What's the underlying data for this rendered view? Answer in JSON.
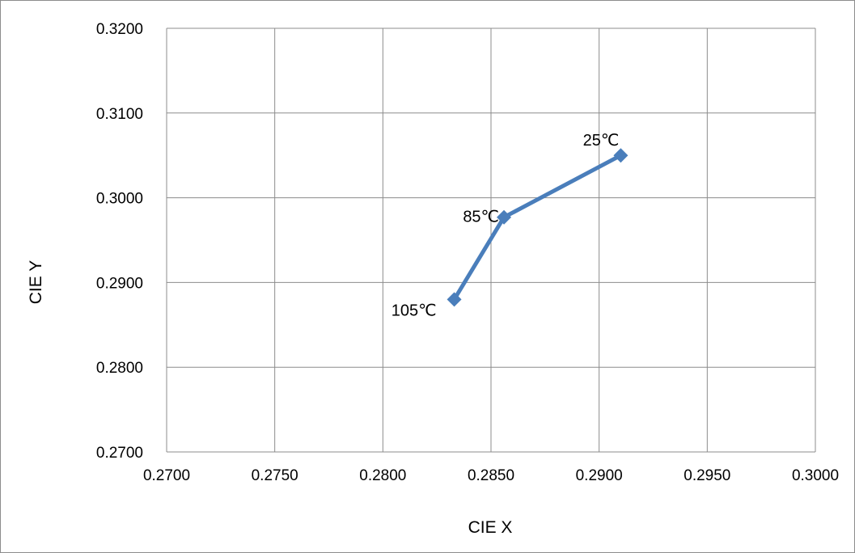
{
  "chart_data": {
    "type": "scatter",
    "title": "",
    "xlabel": "CIE X",
    "ylabel": "CIE Y",
    "xlim": [
      0.27,
      0.3
    ],
    "ylim": [
      0.27,
      0.32
    ],
    "x_ticks": [
      "0.2700",
      "0.2750",
      "0.2800",
      "0.2850",
      "0.2900",
      "0.2950",
      "0.3000"
    ],
    "y_ticks": [
      "0.2700",
      "0.2800",
      "0.2900",
      "0.3000",
      "0.3100",
      "0.3200"
    ],
    "grid": true,
    "series": [
      {
        "color": "#4a7ebb",
        "marker": "diamond",
        "points": [
          {
            "x": 0.291,
            "y": 0.305,
            "label": "25℃"
          },
          {
            "x": 0.2856,
            "y": 0.2977,
            "label": "85℃"
          },
          {
            "x": 0.2833,
            "y": 0.288,
            "label": "105℃"
          }
        ]
      }
    ]
  }
}
